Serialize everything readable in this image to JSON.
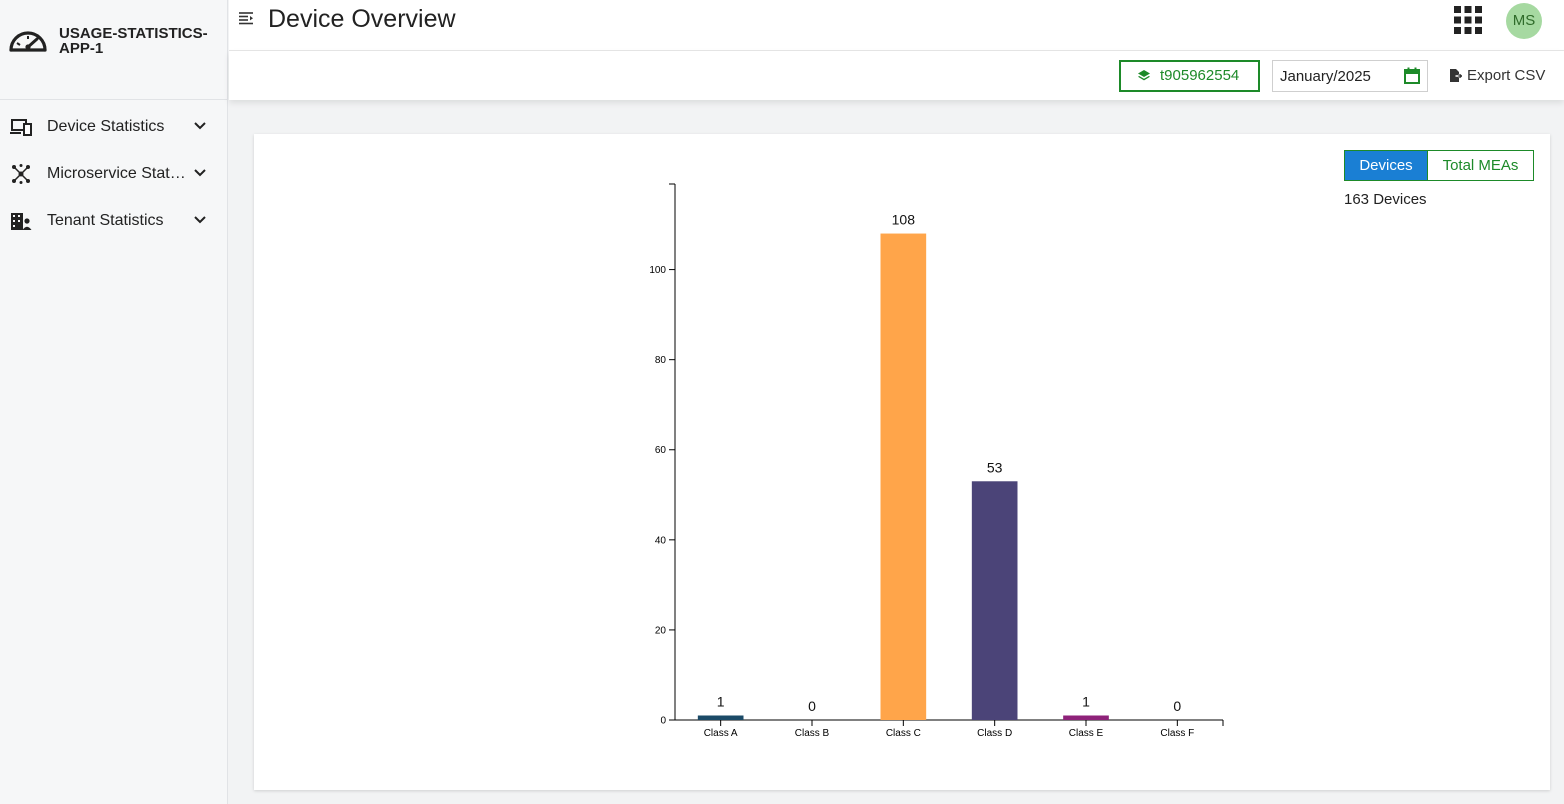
{
  "app": {
    "brand": "USAGE-STATISTICS-APP-1",
    "user_initials": "MS"
  },
  "sidebar": {
    "items": [
      {
        "label": "Device Statistics",
        "icon": "devices-icon"
      },
      {
        "label": "Microservice Statistics",
        "icon": "microservice-icon"
      },
      {
        "label": "Tenant Statistics",
        "icon": "tenant-building-icon"
      }
    ]
  },
  "header": {
    "title": "Device Overview"
  },
  "toolbar": {
    "tenant_label": "t905962554",
    "date_value": "January/2025",
    "export_label": "Export CSV"
  },
  "toggle": {
    "devices_label": "Devices",
    "meas_label": "Total MEAs",
    "active": "Devices"
  },
  "summary": "163 Devices",
  "colors": {
    "accent_green": "#1d8a29",
    "active_blue": "#1a7fd4"
  },
  "chart_data": {
    "type": "bar",
    "categories": [
      "Class A",
      "Class B",
      "Class C",
      "Class D",
      "Class E",
      "Class F"
    ],
    "values": [
      1,
      0,
      108,
      53,
      1,
      0
    ],
    "colors": [
      "#1b4a67",
      "#7a7a7a",
      "#ffa54a",
      "#4b4478",
      "#8e2279",
      "#7a7a7a"
    ],
    "ylim": [
      0,
      119
    ],
    "yticks": [
      0,
      20,
      40,
      60,
      80,
      100
    ],
    "title": "",
    "xlabel": "",
    "ylabel": "",
    "grid": false
  }
}
